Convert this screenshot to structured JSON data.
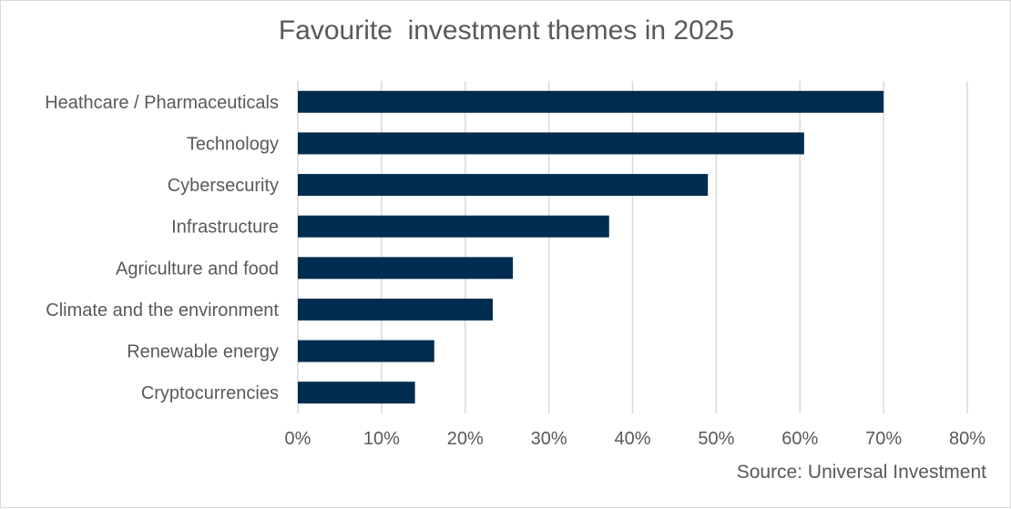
{
  "chart_data": {
    "type": "bar",
    "orientation": "horizontal",
    "title": "Favourite  investment themes in 2025",
    "source": "Source: Universal Investment",
    "categories": [
      "Heathcare / Pharmaceuticals",
      "Technology",
      "Cybersecurity",
      "Infrastructure",
      "Agriculture and food",
      "Climate and the environment",
      "Renewable energy",
      "Cryptocurrencies"
    ],
    "values": [
      70,
      60.5,
      49,
      37.2,
      25.7,
      23.3,
      16.3,
      14
    ],
    "xlim": [
      0,
      80
    ],
    "xticks": [
      "0%",
      "10%",
      "20%",
      "30%",
      "40%",
      "50%",
      "60%",
      "70%",
      "80%"
    ],
    "grid": true,
    "legend": "none",
    "colors": {
      "bar": "#002d4f",
      "grid": "#d9d9d9",
      "text": "#595959"
    }
  }
}
